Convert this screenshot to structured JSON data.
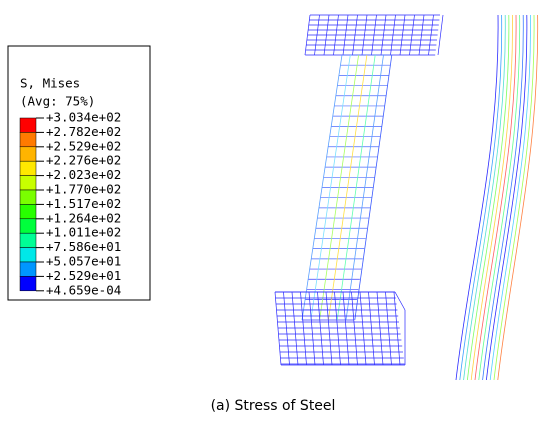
{
  "legend": {
    "title": "S, Mises",
    "subtitle": "(Avg: 75%)",
    "labels": [
      "+3.034e+02",
      "+2.782e+02",
      "+2.529e+02",
      "+2.276e+02",
      "+2.023e+02",
      "+1.770e+02",
      "+1.517e+02",
      "+1.264e+02",
      "+1.011e+02",
      "+7.586e+01",
      "+5.057e+01",
      "+2.529e+01",
      "+4.659e-04"
    ],
    "colors": [
      "#ff0000",
      "#ff7a00",
      "#ffb400",
      "#ffe800",
      "#c8ff00",
      "#7aff00",
      "#28ff00",
      "#00ff3c",
      "#00ff96",
      "#00e8e8",
      "#0096ff",
      "#0000ff"
    ]
  },
  "caption": "(a) Stress of Steel"
}
